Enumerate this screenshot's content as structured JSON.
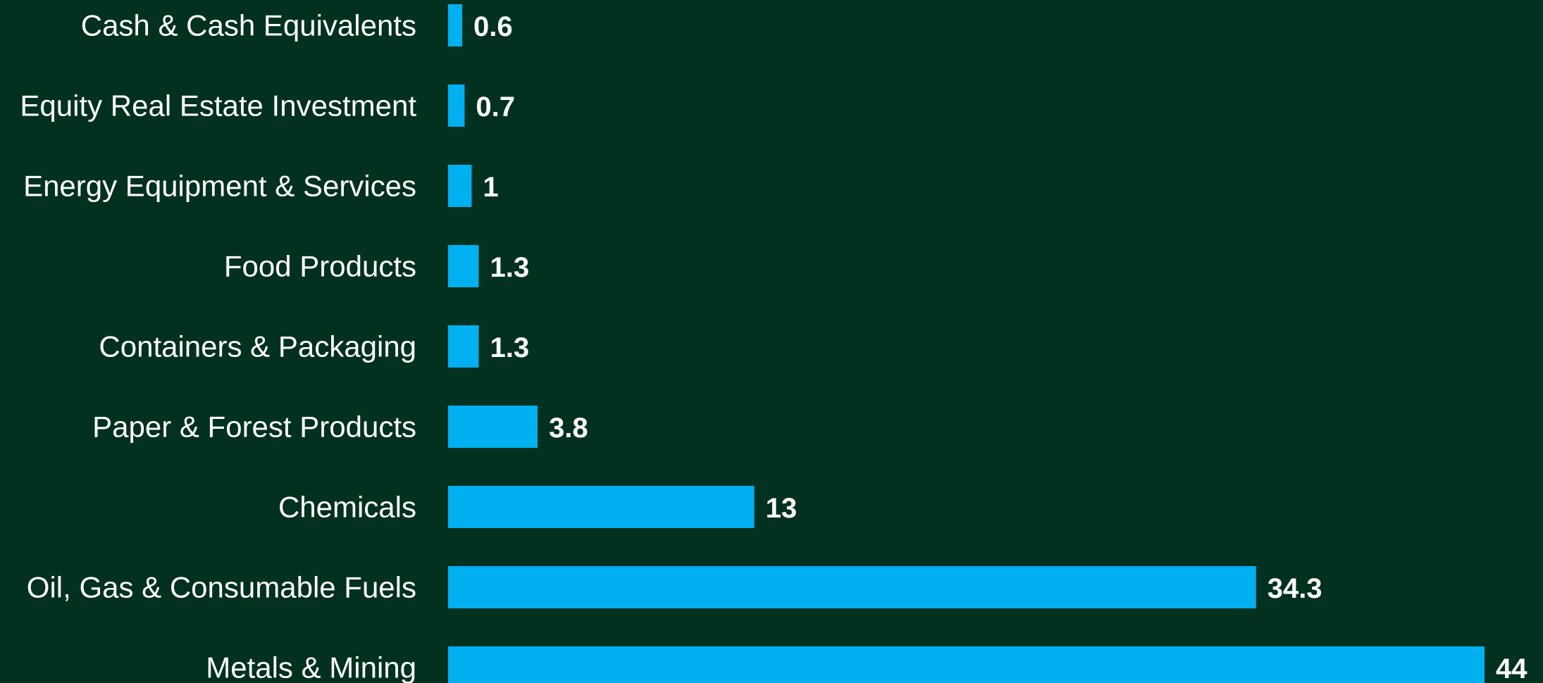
{
  "chart_data": {
    "type": "bar",
    "orientation": "horizontal",
    "categories": [
      "Cash & Cash Equivalents",
      "Equity Real Estate Investment",
      "Energy Equipment & Services",
      "Food Products",
      "Containers & Packaging",
      "Paper & Forest Products",
      "Chemicals",
      "Oil, Gas & Consumable Fuels",
      "Metals & Mining"
    ],
    "values": [
      0.6,
      0.7,
      1,
      1.3,
      1.3,
      3.8,
      13,
      34.3,
      44
    ],
    "value_labels": [
      "0.6",
      "0.7",
      "1",
      "1.3",
      "1.3",
      "3.8",
      "13",
      "34.3",
      "44"
    ],
    "title": "",
    "xlabel": "",
    "ylabel": "",
    "xlim": [
      0,
      44
    ],
    "grid": false,
    "legend": "none",
    "colors": {
      "background": "#02311F",
      "bar": "#00B0F0",
      "text": "#FFFFFF"
    }
  }
}
